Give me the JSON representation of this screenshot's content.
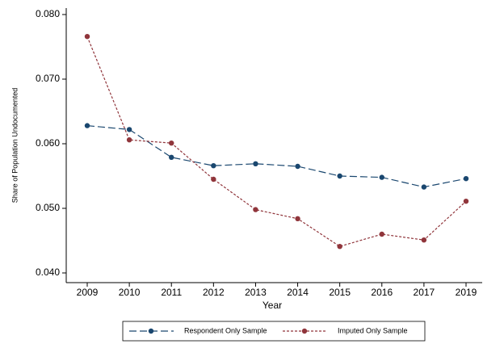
{
  "chart_data": {
    "type": "line",
    "x_label": "Year",
    "y_label": "Share of Population Undocumented",
    "categories": [
      "2009",
      "2010",
      "2011",
      "2012",
      "2013",
      "2014",
      "2015",
      "2016",
      "2017",
      "2019"
    ],
    "series": [
      {
        "name": "Respondent Only Sample",
        "color": "#1a476f",
        "dash": "long",
        "values": [
          0.0628,
          0.0622,
          0.0579,
          0.0566,
          0.0569,
          0.0565,
          0.055,
          0.0548,
          0.0533,
          0.0546
        ]
      },
      {
        "name": "Imputed Only Sample",
        "color": "#90353b",
        "dash": "short",
        "values": [
          0.0766,
          0.0606,
          0.0601,
          0.0545,
          0.0498,
          0.0484,
          0.0441,
          0.046,
          0.0451,
          0.0511
        ]
      }
    ],
    "ylim": [
      0.0385,
      0.081
    ],
    "yticks": [
      {
        "value": 0.04,
        "label": "0.040"
      },
      {
        "value": 0.05,
        "label": "0.050"
      },
      {
        "value": 0.06,
        "label": "0.060"
      },
      {
        "value": 0.07,
        "label": "0.070"
      },
      {
        "value": 0.08,
        "label": "0.080"
      }
    ],
    "grid": false,
    "legend": "bottom"
  }
}
